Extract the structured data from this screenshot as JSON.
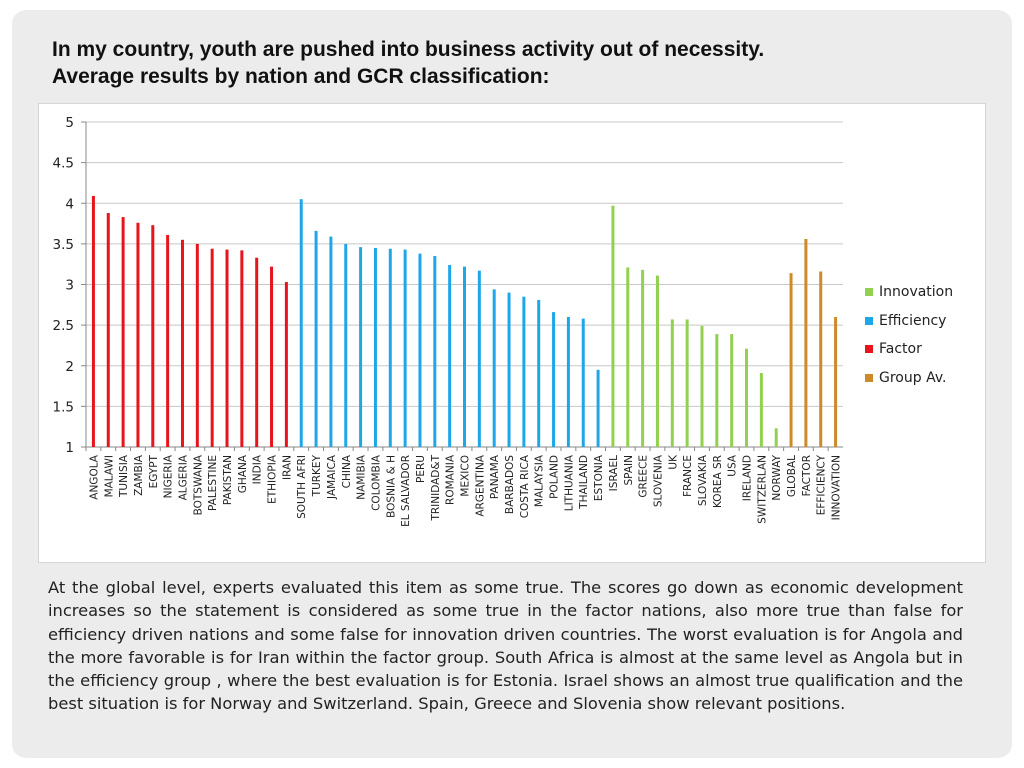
{
  "slide": {
    "title_line1": "In my country, youth are pushed into business activity out of necessity.",
    "title_line2": "Average results by nation and GCR classification:",
    "body": "At the global level, experts evaluated this item as some true. The scores go down as economic development increases so the statement is considered as some true in the factor nations, also more true than false for efficiency driven nations and some false for innovation driven countries. The worst evaluation is for Angola and the more favorable is for Iran within the factor group. South Africa is almost at the same level as Angola but in the efficiency group , where the best evaluation is for Estonia. Israel shows an almost true qualification and the best situation is for Norway and Switzerland. Spain, Greece and Slovenia show  relevant positions."
  },
  "legend": [
    {
      "label": "Innovation",
      "color": "#92d050"
    },
    {
      "label": "Efficiency",
      "color": "#1ea7e8"
    },
    {
      "label": "Factor",
      "color": "#e8141c"
    },
    {
      "label": "Group Av.",
      "color": "#cc8a28"
    }
  ],
  "chart_data": {
    "type": "bar",
    "title": "",
    "xlabel": "",
    "ylabel": "",
    "ylim": [
      1,
      5
    ],
    "yticks": [
      "1",
      "1.5",
      "2",
      "2.5",
      "3",
      "3.5",
      "4",
      "4.5",
      "5"
    ],
    "grid": true,
    "legend_position": "right",
    "colors": {
      "Factor": "#e8141c",
      "Efficiency": "#1ea7e8",
      "Innovation": "#92d050",
      "Group Av.": "#cc8a28"
    },
    "categories": [
      "ANGOLA",
      "MALAWI",
      "TUNISIA",
      "ZAMBIA",
      "EGYPT",
      "NIGERIA",
      "ALGERIA",
      "BOTSWANA",
      "PALESTINE",
      "PAKISTAN",
      "GHANA",
      "INDIA",
      "ETHIOPIA",
      "IRAN",
      "SOUTH AFRI",
      "TURKEY",
      "JAMAICA",
      "CHINA",
      "NAMIBIA",
      "COLOMBIA",
      "BOSNIA & H",
      "EL SALVADOR",
      "PERU",
      "TRINIDAD&T",
      "ROMANIA",
      "MEXICO",
      "ARGENTINA",
      "PANAMA",
      "BARBADOS",
      "COSTA RICA",
      "MALAYSIA",
      "POLAND",
      "LITHUANIA",
      "THAILAND",
      "ESTONIA",
      "ISRAEL",
      "SPAIN",
      "GREECE",
      "SLOVENIA",
      "UK",
      "FRANCE",
      "SLOVAKIA",
      "KOREA SR",
      "USA",
      "IRELAND",
      "SWITZERLAN",
      "NORWAY",
      "GLOBAL",
      "FACTOR",
      "EFFICIENCY",
      "INNOVATION"
    ],
    "groups": [
      "Factor",
      "Factor",
      "Factor",
      "Factor",
      "Factor",
      "Factor",
      "Factor",
      "Factor",
      "Factor",
      "Factor",
      "Factor",
      "Factor",
      "Factor",
      "Factor",
      "Efficiency",
      "Efficiency",
      "Efficiency",
      "Efficiency",
      "Efficiency",
      "Efficiency",
      "Efficiency",
      "Efficiency",
      "Efficiency",
      "Efficiency",
      "Efficiency",
      "Efficiency",
      "Efficiency",
      "Efficiency",
      "Efficiency",
      "Efficiency",
      "Efficiency",
      "Efficiency",
      "Efficiency",
      "Efficiency",
      "Efficiency",
      "Innovation",
      "Innovation",
      "Innovation",
      "Innovation",
      "Innovation",
      "Innovation",
      "Innovation",
      "Innovation",
      "Innovation",
      "Innovation",
      "Innovation",
      "Innovation",
      "Group Av.",
      "Group Av.",
      "Group Av.",
      "Group Av."
    ],
    "values": [
      4.09,
      3.88,
      3.83,
      3.76,
      3.73,
      3.61,
      3.55,
      3.5,
      3.44,
      3.43,
      3.42,
      3.33,
      3.22,
      3.03,
      4.05,
      3.66,
      3.59,
      3.5,
      3.46,
      3.45,
      3.44,
      3.43,
      3.38,
      3.35,
      3.24,
      3.22,
      3.17,
      2.94,
      2.9,
      2.85,
      2.81,
      2.66,
      2.6,
      2.58,
      1.95,
      3.97,
      3.21,
      3.18,
      3.11,
      2.57,
      2.57,
      2.49,
      2.39,
      2.39,
      2.21,
      1.91,
      1.23,
      3.14,
      3.56,
      3.16,
      2.6
    ]
  }
}
